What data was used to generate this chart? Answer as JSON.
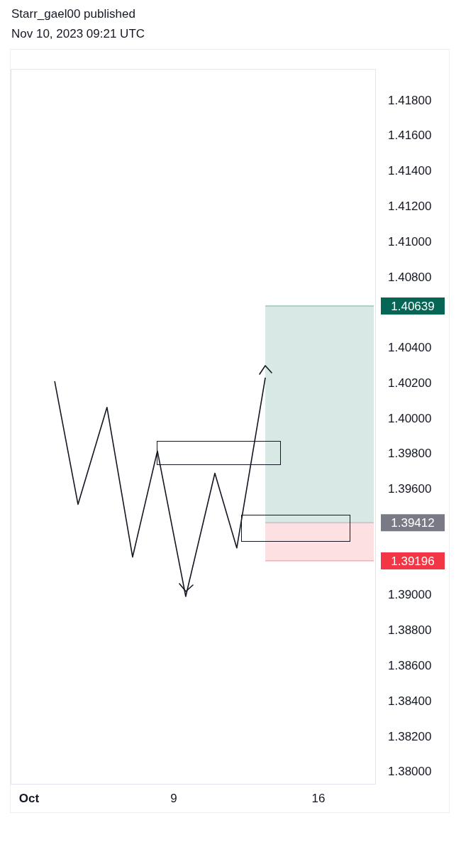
{
  "chart_data": {
    "type": "line",
    "title": "Starr_gael00 published",
    "subtitle": "Nov 10, 2023 09:21 UTC",
    "series": [
      {
        "color": "#131722",
        "x": [
          3.24,
          4.37,
          5.77,
          7.01,
          8.21,
          9.58,
          10.99,
          12.05,
          13.43
        ],
        "values": [
          1.40213,
          1.39516,
          1.40065,
          1.39218,
          1.39818,
          1.38995,
          1.39692,
          1.39269,
          1.40233
        ]
      }
    ],
    "xlim": [
      1.11,
      18.78
    ],
    "xticks": [
      {
        "value": 2,
        "label": "Oct"
      },
      9,
      16
    ],
    "ylim": [
      1.3793,
      1.4198
    ],
    "yticks": [
      {
        "value": 1.38,
        "label": "1.38000"
      },
      {
        "value": 1.382,
        "label": "1.38200"
      },
      {
        "value": 1.384,
        "label": "1.38400"
      },
      {
        "value": 1.386,
        "label": "1.38600"
      },
      {
        "value": 1.388,
        "label": "1.38800"
      },
      {
        "value": 1.39,
        "label": "1.39000"
      },
      {
        "value": 1.396,
        "label": "1.39600"
      },
      {
        "value": 1.398,
        "label": "1.39800"
      },
      {
        "value": 1.4,
        "label": "1.40000"
      },
      {
        "value": 1.402,
        "label": "1.40200"
      },
      {
        "value": 1.404,
        "label": "1.40400"
      },
      {
        "value": 1.408,
        "label": "1.40800"
      },
      {
        "value": 1.41,
        "label": "1.41000"
      },
      {
        "value": 1.412,
        "label": "1.41200"
      },
      {
        "value": 1.414,
        "label": "1.41400"
      },
      {
        "value": 1.416,
        "label": "1.41600"
      },
      {
        "value": 1.418,
        "label": "1.41800"
      }
    ],
    "bands": [
      {
        "axis": "y",
        "from": 1.39412,
        "to": 1.40639,
        "color": "#d8e8e4"
      },
      {
        "axis": "y",
        "from": 1.39196,
        "to": 1.39412,
        "color": "#fde0e2"
      }
    ],
    "ref_lines": [
      {
        "axis": "y",
        "value": 1.40639,
        "label": "1.40639",
        "color": "#056656"
      },
      {
        "axis": "y",
        "value": 1.39412,
        "label": "1.39412",
        "color": "#787b86"
      },
      {
        "axis": "y",
        "value": 1.39196,
        "label": "1.39196",
        "color": "#f23645"
      }
    ],
    "grid": false,
    "legend": false,
    "marker": "none",
    "line_style": "solid"
  }
}
